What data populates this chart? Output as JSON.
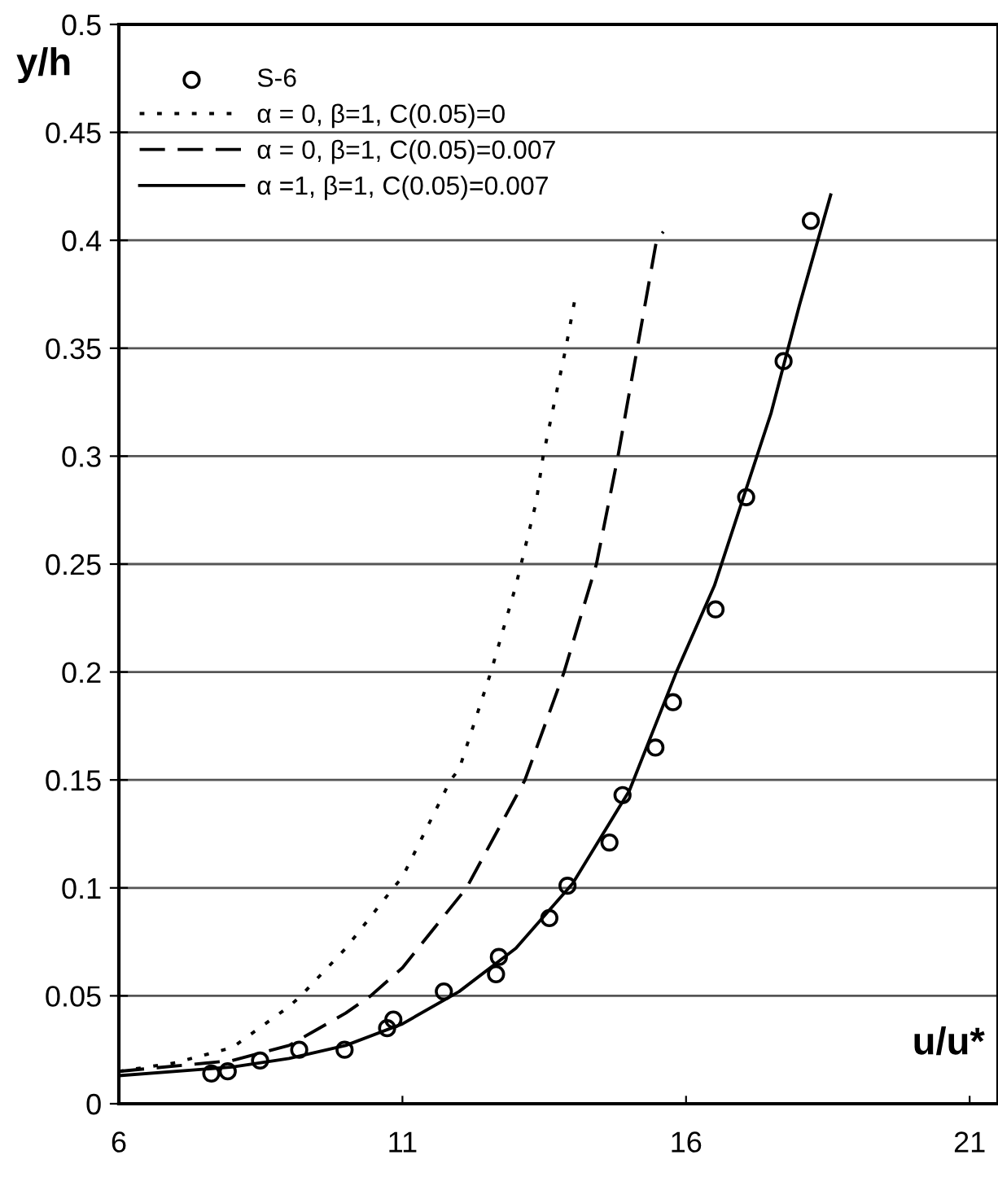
{
  "chart_data": {
    "type": "line",
    "ylabel": "y/h",
    "xlabel": "u/u*",
    "xlim": [
      6,
      21.5
    ],
    "xticks": [
      6,
      11,
      16,
      21
    ],
    "ylim": [
      0,
      0.5
    ],
    "yticks": [
      0,
      0.05,
      0.1,
      0.15,
      0.2,
      0.25,
      0.3,
      0.35,
      0.4,
      0.45,
      0.5
    ],
    "grid": "y",
    "legend": "top left",
    "series": [
      {
        "name": "S-6",
        "type": "scatter",
        "marker": "circle",
        "color": "#000000",
        "x": [
          7.63,
          7.92,
          8.49,
          9.18,
          9.98,
          10.73,
          10.84,
          11.73,
          12.65,
          12.7,
          13.59,
          13.91,
          14.65,
          14.88,
          15.46,
          15.77,
          16.52,
          17.06,
          17.72,
          18.2
        ],
        "values": [
          0.014,
          0.015,
          0.02,
          0.025,
          0.025,
          0.035,
          0.039,
          0.052,
          0.06,
          0.068,
          0.086,
          0.101,
          0.121,
          0.143,
          0.165,
          0.186,
          0.229,
          0.281,
          0.344,
          0.409
        ]
      },
      {
        "name": "α = 0, β=1, C(0.05)=0",
        "line_style": "dotted",
        "color": "#000000",
        "x": [
          6,
          7,
          8,
          9,
          9.21,
          10,
          10.84,
          11,
          11.85,
          12,
          12.56,
          13,
          13.36,
          13.48,
          13.88,
          14.05
        ],
        "values": [
          0.015,
          0.019,
          0.026,
          0.045,
          0.05,
          0.072,
          0.1,
          0.105,
          0.15,
          0.155,
          0.2,
          0.24,
          0.279,
          0.3,
          0.35,
          0.374
        ]
      },
      {
        "name": "α = 0, β=1, C(0.05)=0.007",
        "line_style": "dashed",
        "color": "#000000",
        "x": [
          6,
          8,
          9,
          10,
          10.44,
          11,
          12.13,
          13.16,
          13.85,
          14.42,
          14.8,
          15.14,
          15.48,
          15.6
        ],
        "values": [
          0.015,
          0.02,
          0.027,
          0.042,
          0.05,
          0.063,
          0.1,
          0.15,
          0.2,
          0.25,
          0.3,
          0.35,
          0.4,
          0.404
        ]
      },
      {
        "name": "α =1, β=1, C(0.05)=0.007",
        "line_style": "solid",
        "color": "#000000",
        "x": [
          6,
          8,
          9,
          10,
          11,
          12,
          13,
          14,
          15,
          15.83,
          16.5,
          17,
          17.5,
          18,
          18.55
        ],
        "values": [
          0.013,
          0.017,
          0.021,
          0.027,
          0.037,
          0.052,
          0.072,
          0.102,
          0.145,
          0.2,
          0.24,
          0.28,
          0.32,
          0.37,
          0.421
        ]
      }
    ]
  }
}
